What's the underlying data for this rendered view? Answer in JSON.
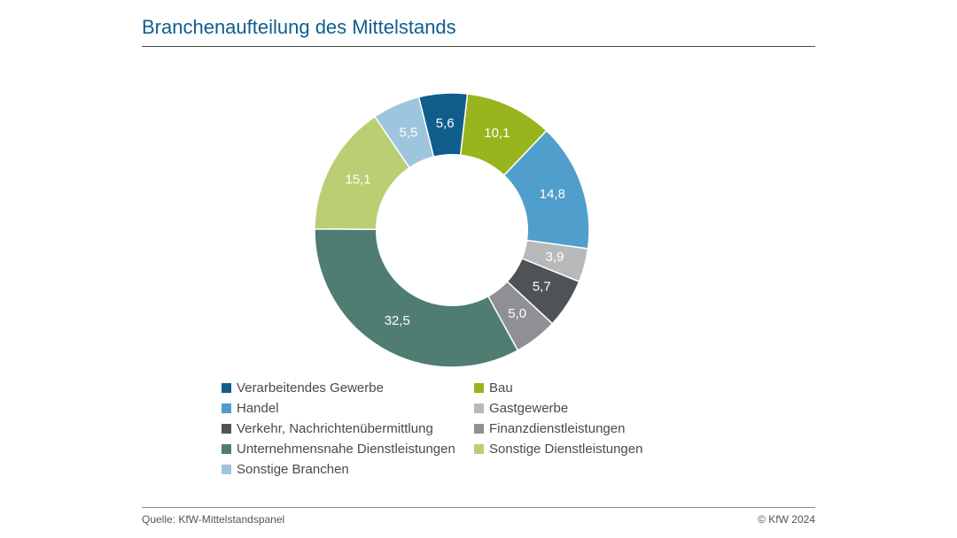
{
  "title": {
    "text": "Branchenaufteilung des Mittelstands",
    "color": "#0f5e8c",
    "fontsize": 22
  },
  "source": "Quelle: KfW-Mittelstandspanel",
  "copyright": "© KfW 2024",
  "chart": {
    "type": "donut",
    "inner_radius_ratio": 0.55,
    "start_angle_deg": -14,
    "background_color": "#ffffff",
    "label_color": "#ffffff",
    "label_fontsize": 15,
    "decimal_separator": ",",
    "slices": [
      {
        "key": "verarbeitendes-gewerbe",
        "label": "Verarbeitendes Gewerbe",
        "value": 5.6,
        "color": "#0f5e8c"
      },
      {
        "key": "bau",
        "label": "Bau",
        "value": 10.1,
        "color": "#98b51e"
      },
      {
        "key": "handel",
        "label": "Handel",
        "value": 14.8,
        "color": "#4f9ecb"
      },
      {
        "key": "gastgewerbe",
        "label": "Gastgewerbe",
        "value": 3.9,
        "color": "#b7b9ba"
      },
      {
        "key": "verkehr",
        "label": "Verkehr, Nachrichtenübermittlung",
        "value": 5.7,
        "color": "#4f5356"
      },
      {
        "key": "finanz",
        "label": "Finanzdienstleistungen",
        "value": 5.0,
        "color": "#8e9093"
      },
      {
        "key": "unternehmensnahe",
        "label": "Unternehmensnahe Dienstleistungen",
        "value": 32.5,
        "color": "#4f7d72"
      },
      {
        "key": "sonstige-dl",
        "label": "Sonstige Dienstleistungen",
        "value": 15.1,
        "color": "#bace74"
      },
      {
        "key": "sonstige-branchen",
        "label": "Sonstige Branchen",
        "value": 5.5,
        "color": "#9dc5de"
      }
    ]
  },
  "legend": {
    "columns": 2,
    "fontsize": 15,
    "text_color": "#4a4a4a",
    "swatch_size": 11
  }
}
